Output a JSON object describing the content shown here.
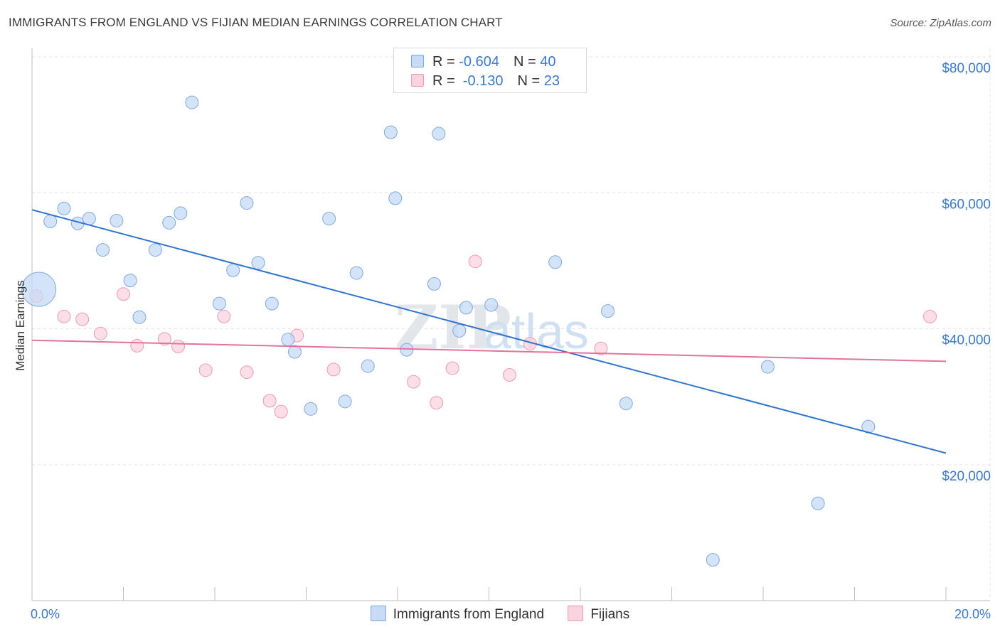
{
  "title": "IMMIGRANTS FROM ENGLAND VS FIJIAN MEDIAN EARNINGS CORRELATION CHART",
  "source": "Source: ZipAtlas.com",
  "watermark": {
    "zip": "ZIP",
    "atlas": "atlas"
  },
  "colors": {
    "england_fill": "#c6dbf5",
    "england_stroke": "#7fa9dc",
    "england_line": "#2f73d0",
    "fijian_fill": "#fbd3df",
    "fijian_stroke": "#ee9ab4",
    "fijian_line": "#e4729a",
    "grid": "#e3e3e3",
    "axis_text": "#3a78c9"
  },
  "legend": {
    "rows": [
      {
        "r_label": "R = ",
        "r_value": "-0.604",
        "n_label": "N = ",
        "n_value": "40"
      },
      {
        "r_label": "R = ",
        "r_value": " -0.130",
        "n_label": "N = ",
        "n_value": "23"
      }
    ]
  },
  "bottom_legend": {
    "england": "Immigrants from England",
    "fijian": "Fijians"
  },
  "chart_data": {
    "type": "scatter",
    "title": "IMMIGRANTS FROM ENGLAND VS FIJIAN MEDIAN EARNINGS CORRELATION CHART",
    "xlabel": "",
    "ylabel": "Median Earnings",
    "xlim": [
      0,
      20
    ],
    "ylim": [
      0,
      80000
    ],
    "x_tick_labels": [
      "0.0%",
      "20.0%"
    ],
    "y_ticks": [
      20000,
      40000,
      60000,
      80000
    ],
    "y_tick_labels": [
      "$20,000",
      "$40,000",
      "$60,000",
      "$80,000"
    ],
    "grid": true,
    "legend_position": "top-center",
    "series": [
      {
        "name": "Immigrants from England",
        "r": -0.604,
        "n": 40,
        "trend": {
          "x": [
            0,
            20
          ],
          "y": [
            57500,
            21700
          ]
        },
        "points": [
          [
            0.15,
            45800,
            3
          ],
          [
            0.4,
            55800,
            1
          ],
          [
            0.7,
            57700,
            1
          ],
          [
            1.0,
            55500,
            1
          ],
          [
            1.25,
            56200,
            1
          ],
          [
            1.55,
            51600,
            1
          ],
          [
            1.85,
            55900,
            1
          ],
          [
            2.15,
            47100,
            1
          ],
          [
            2.35,
            41700,
            1
          ],
          [
            2.7,
            51600,
            1
          ],
          [
            3.0,
            55600,
            1
          ],
          [
            3.25,
            57000,
            1
          ],
          [
            3.5,
            73300,
            1
          ],
          [
            4.1,
            43700,
            1
          ],
          [
            4.4,
            48600,
            1
          ],
          [
            4.7,
            58500,
            1
          ],
          [
            4.95,
            49700,
            1
          ],
          [
            5.25,
            43700,
            1
          ],
          [
            5.6,
            38400,
            1
          ],
          [
            5.75,
            36600,
            1
          ],
          [
            6.1,
            28200,
            1
          ],
          [
            6.5,
            56200,
            1
          ],
          [
            6.85,
            29300,
            1
          ],
          [
            7.1,
            48200,
            1
          ],
          [
            7.35,
            34500,
            1
          ],
          [
            7.85,
            68900,
            1
          ],
          [
            7.95,
            59200,
            1
          ],
          [
            8.2,
            36900,
            1
          ],
          [
            8.8,
            46600,
            1
          ],
          [
            8.9,
            68700,
            1
          ],
          [
            9.35,
            39700,
            1
          ],
          [
            9.5,
            43100,
            1
          ],
          [
            10.05,
            43500,
            1
          ],
          [
            11.45,
            49800,
            1
          ],
          [
            12.6,
            42600,
            1
          ],
          [
            13.0,
            29000,
            1
          ],
          [
            14.9,
            6000,
            1
          ],
          [
            16.1,
            34400,
            1
          ],
          [
            17.2,
            14300,
            1
          ],
          [
            18.3,
            25600,
            1
          ]
        ]
      },
      {
        "name": "Fijians",
        "r": -0.13,
        "n": 23,
        "trend": {
          "x": [
            0,
            20
          ],
          "y": [
            38300,
            35200
          ]
        },
        "points": [
          [
            0.1,
            44800,
            1
          ],
          [
            0.7,
            41800,
            1
          ],
          [
            1.1,
            41400,
            1
          ],
          [
            1.5,
            39300,
            1
          ],
          [
            2.0,
            45100,
            1
          ],
          [
            2.3,
            37500,
            1
          ],
          [
            2.9,
            38500,
            1
          ],
          [
            3.2,
            37400,
            1
          ],
          [
            3.8,
            33900,
            1
          ],
          [
            4.2,
            41800,
            1
          ],
          [
            4.7,
            33600,
            1
          ],
          [
            5.2,
            29400,
            1
          ],
          [
            5.45,
            27800,
            1
          ],
          [
            5.8,
            39000,
            1
          ],
          [
            6.6,
            34000,
            1
          ],
          [
            8.35,
            32200,
            1
          ],
          [
            8.85,
            29100,
            1
          ],
          [
            9.2,
            34200,
            1
          ],
          [
            9.7,
            49900,
            1
          ],
          [
            10.45,
            33200,
            1
          ],
          [
            10.9,
            37800,
            1
          ],
          [
            12.45,
            37100,
            1
          ],
          [
            19.65,
            41800,
            1
          ]
        ]
      }
    ]
  }
}
